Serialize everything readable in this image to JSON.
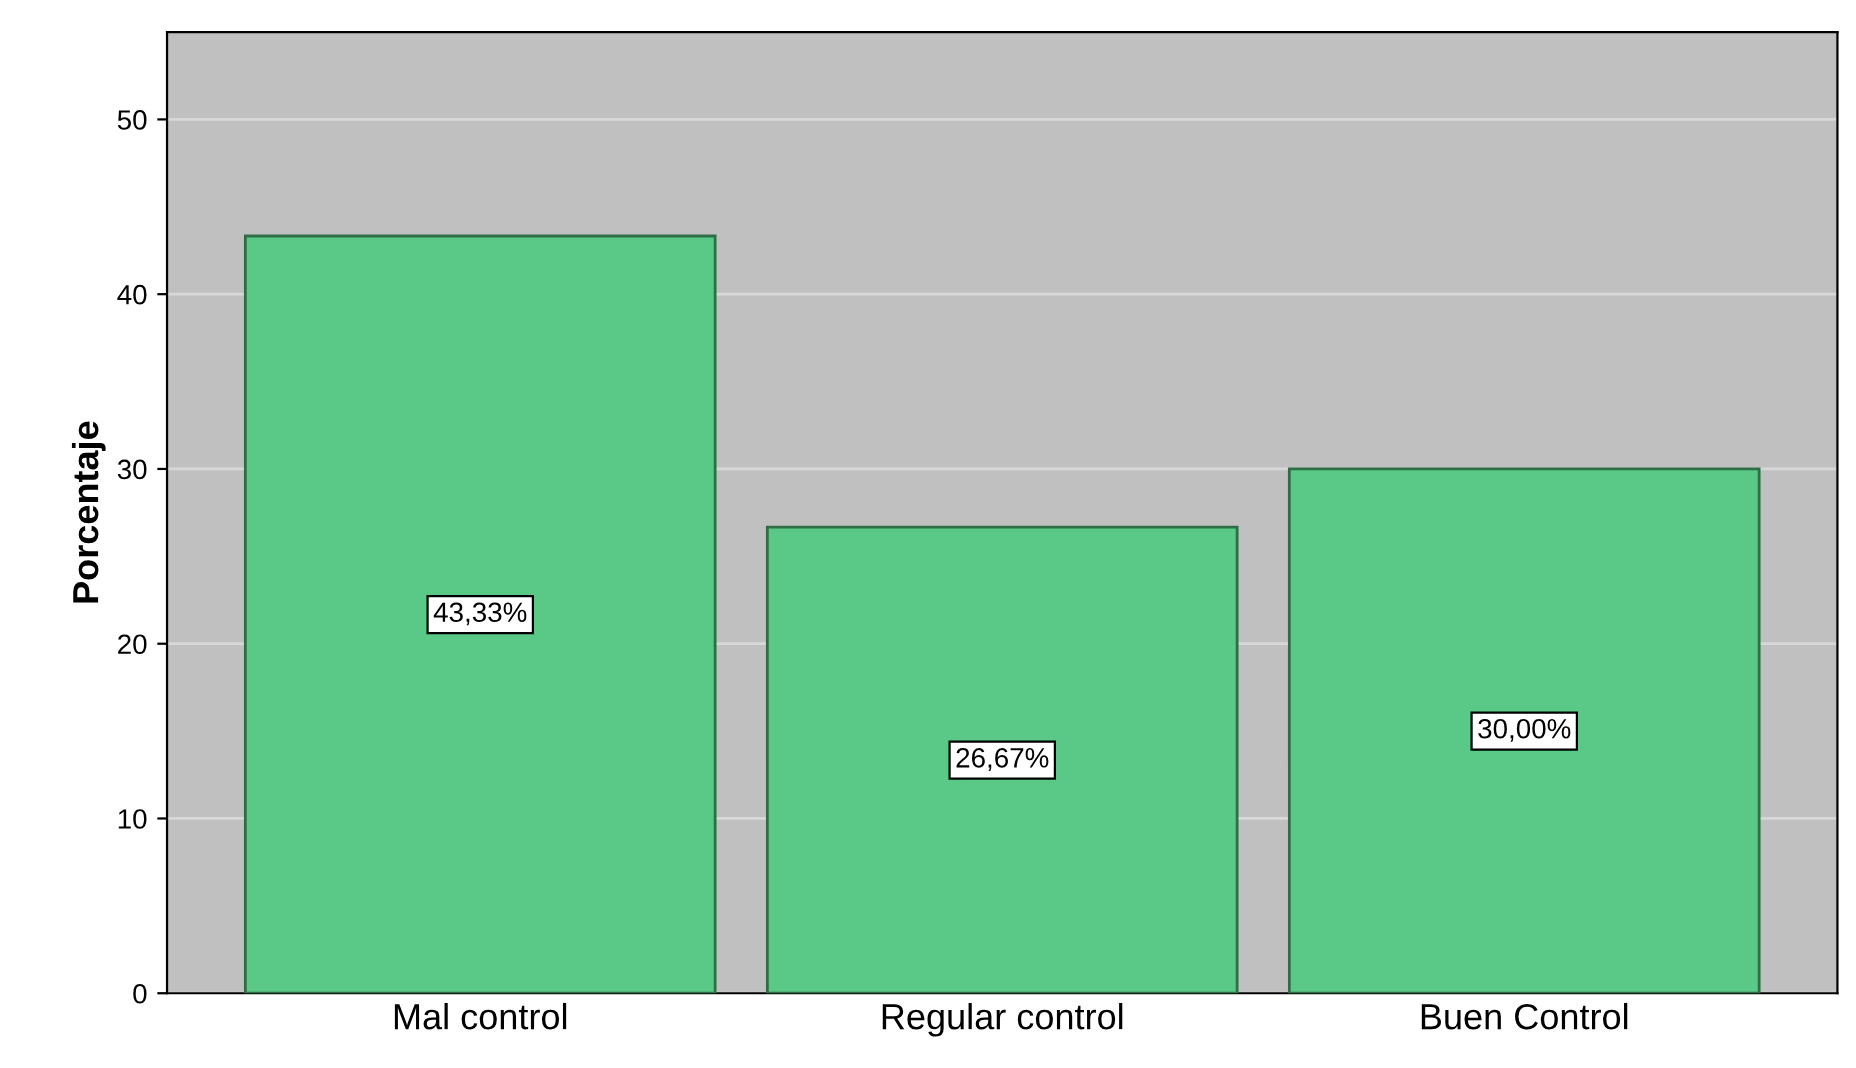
{
  "chart_data": {
    "type": "bar",
    "ylabel": "Porcentaje",
    "categories": [
      "Mal control",
      "Regular control",
      "Buen Control"
    ],
    "values": [
      43.33,
      26.67,
      30.0
    ],
    "value_labels": [
      "43,33%",
      "26,67%",
      "30,00%"
    ],
    "color": "#5ac987",
    "ylim": [
      0,
      55
    ],
    "yticks": [
      0,
      10,
      20,
      30,
      40,
      50
    ],
    "grid": "y"
  }
}
